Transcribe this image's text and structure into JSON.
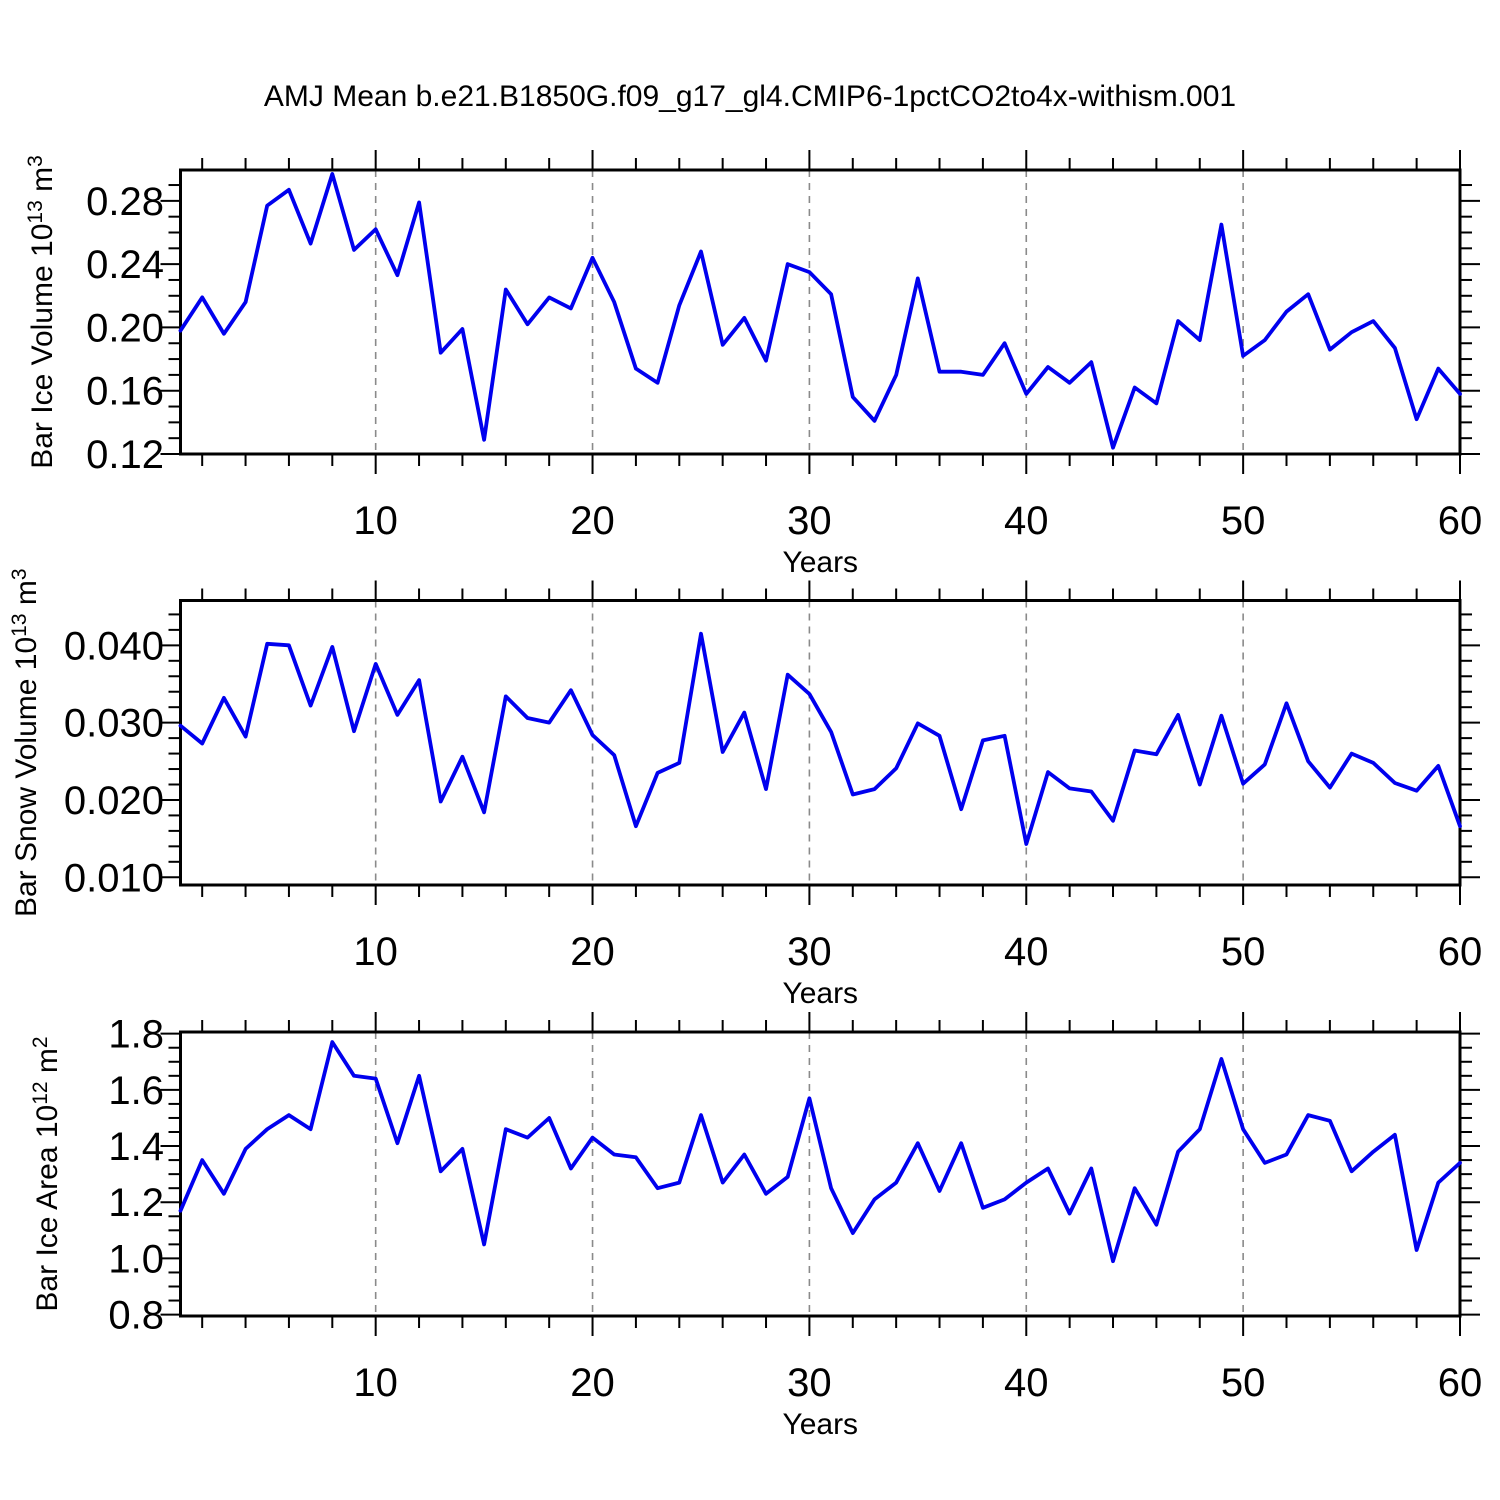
{
  "title": "AMJ Mean b.e21.B1850G.f09_g17_gl4.CMIP6-1pctCO2to4x-withism.001",
  "style": {
    "line_color": "#0000EE",
    "grid_color": "#8a8a8a",
    "axis_color": "#000000",
    "background": "#ffffff"
  },
  "x_axis": {
    "label": "Years",
    "range": [
      1,
      60
    ],
    "major_ticks": [
      10,
      20,
      30,
      40,
      50,
      60
    ],
    "minor_step": 2,
    "grid_years": [
      10,
      20,
      30,
      40,
      50
    ]
  },
  "years": [
    1,
    2,
    3,
    4,
    5,
    6,
    7,
    8,
    9,
    10,
    11,
    12,
    13,
    14,
    15,
    16,
    17,
    18,
    19,
    20,
    21,
    22,
    23,
    24,
    25,
    26,
    27,
    28,
    29,
    30,
    31,
    32,
    33,
    34,
    35,
    36,
    37,
    38,
    39,
    40,
    41,
    42,
    43,
    44,
    45,
    46,
    47,
    48,
    49,
    50,
    51,
    52,
    53,
    54,
    55,
    56,
    57,
    58,
    59,
    60
  ],
  "chart_data": [
    {
      "type": "line",
      "name": "bar-ice-volume",
      "ylabel_parts": [
        [
          "Bar Ice Volume 10",
          false
        ],
        [
          "13",
          true
        ],
        [
          " m",
          false
        ],
        [
          "3",
          true
        ]
      ],
      "ylabel_plain": "Bar Ice Volume 10^13 m^3",
      "yticks": [
        0.12,
        0.16,
        0.2,
        0.24,
        0.28
      ],
      "ytick_labels": [
        "0.12",
        "0.16",
        "0.20",
        "0.24",
        "0.28"
      ],
      "ylim": [
        0.12,
        0.2995
      ],
      "y_minor_step": 0.01,
      "values": [
        0.198,
        0.219,
        0.196,
        0.216,
        0.277,
        0.287,
        0.253,
        0.297,
        0.249,
        0.262,
        0.233,
        0.279,
        0.184,
        0.199,
        0.129,
        0.224,
        0.202,
        0.219,
        0.212,
        0.244,
        0.216,
        0.174,
        0.165,
        0.214,
        0.248,
        0.189,
        0.206,
        0.179,
        0.24,
        0.235,
        0.221,
        0.156,
        0.141,
        0.17,
        0.231,
        0.172,
        0.172,
        0.17,
        0.19,
        0.158,
        0.175,
        0.165,
        0.178,
        0.124,
        0.162,
        0.152,
        0.204,
        0.192,
        0.265,
        0.182,
        0.192,
        0.21,
        0.221,
        0.186,
        0.197,
        0.204,
        0.187,
        0.142,
        0.174,
        0.158
      ]
    },
    {
      "type": "line",
      "name": "bar-snow-volume",
      "ylabel_parts": [
        [
          "Bar Snow Volume 10",
          false
        ],
        [
          "13",
          true
        ],
        [
          " m",
          false
        ],
        [
          "3",
          true
        ]
      ],
      "ylabel_plain": "Bar Snow Volume 10^13 m^3",
      "yticks": [
        0.01,
        0.02,
        0.03,
        0.04
      ],
      "ytick_labels": [
        "0.010",
        "0.020",
        "0.030",
        "0.040"
      ],
      "ylim": [
        0.009,
        0.0458
      ],
      "y_minor_step": 0.002,
      "values": [
        0.0296,
        0.0273,
        0.0332,
        0.0282,
        0.0402,
        0.04,
        0.0322,
        0.0398,
        0.0289,
        0.0376,
        0.031,
        0.0355,
        0.0198,
        0.0256,
        0.0184,
        0.0334,
        0.0306,
        0.03,
        0.0342,
        0.0284,
        0.0258,
        0.0166,
        0.0235,
        0.0248,
        0.0415,
        0.0262,
        0.0313,
        0.0214,
        0.0362,
        0.0337,
        0.0288,
        0.0207,
        0.0214,
        0.0241,
        0.0299,
        0.0283,
        0.0188,
        0.0277,
        0.0283,
        0.0143,
        0.0236,
        0.0215,
        0.0211,
        0.0173,
        0.0264,
        0.0259,
        0.031,
        0.022,
        0.0309,
        0.0221,
        0.0246,
        0.0325,
        0.025,
        0.0216,
        0.026,
        0.0248,
        0.0222,
        0.0212,
        0.0244,
        0.0166
      ]
    },
    {
      "type": "line",
      "name": "bar-ice-area",
      "ylabel_parts": [
        [
          "Bar Ice Area 10",
          false
        ],
        [
          "12",
          true
        ],
        [
          " m",
          false
        ],
        [
          "2",
          true
        ]
      ],
      "ylabel_plain": "Bar Ice Area 10^12 m^2",
      "yticks": [
        0.8,
        1.0,
        1.2,
        1.4,
        1.6,
        1.8
      ],
      "ytick_labels": [
        "0.8",
        "1.0",
        "1.2",
        "1.4",
        "1.6",
        "1.8"
      ],
      "ylim": [
        0.795,
        1.806
      ],
      "y_minor_step": 0.05,
      "values": [
        1.17,
        1.35,
        1.23,
        1.39,
        1.46,
        1.51,
        1.46,
        1.77,
        1.65,
        1.64,
        1.41,
        1.65,
        1.31,
        1.39,
        1.05,
        1.46,
        1.43,
        1.5,
        1.32,
        1.43,
        1.37,
        1.36,
        1.25,
        1.27,
        1.51,
        1.27,
        1.37,
        1.23,
        1.29,
        1.57,
        1.25,
        1.09,
        1.21,
        1.27,
        1.41,
        1.24,
        1.41,
        1.18,
        1.21,
        1.27,
        1.32,
        1.16,
        1.32,
        0.99,
        1.25,
        1.12,
        1.38,
        1.46,
        1.71,
        1.46,
        1.34,
        1.37,
        1.51,
        1.49,
        1.31,
        1.38,
        1.44,
        1.03,
        1.27,
        1.34
      ]
    }
  ]
}
